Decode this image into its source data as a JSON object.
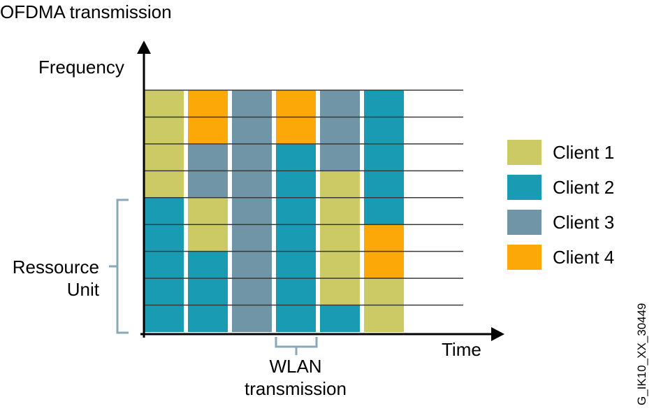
{
  "title": "OFDMA transmission",
  "axes": {
    "y_label": "Frequency",
    "x_label": "Time"
  },
  "annotations": {
    "resource_unit": [
      "Ressource",
      "Unit"
    ],
    "wlan_transmission": [
      "WLAN",
      "transmission"
    ]
  },
  "legend": [
    {
      "client": 1,
      "label": "Client 1",
      "color": "#cbca64"
    },
    {
      "client": 2,
      "label": "Client 2",
      "color": "#1a9bb4"
    },
    {
      "client": 3,
      "label": "Client 3",
      "color": "#6f95a6"
    },
    {
      "client": 4,
      "label": "Client 4",
      "color": "#fba808"
    }
  ],
  "grid": {
    "resource_units_per_slot": 9,
    "time_slots": 6,
    "slots_top_to_bottom": [
      [
        1,
        4,
        3,
        4,
        3,
        2
      ],
      [
        1,
        4,
        3,
        4,
        3,
        2
      ],
      [
        1,
        3,
        3,
        2,
        3,
        2
      ],
      [
        1,
        3,
        3,
        2,
        1,
        2
      ],
      [
        2,
        1,
        3,
        2,
        1,
        2
      ],
      [
        2,
        1,
        3,
        2,
        1,
        4
      ],
      [
        2,
        2,
        3,
        2,
        1,
        4
      ],
      [
        2,
        2,
        3,
        2,
        1,
        1
      ],
      [
        2,
        2,
        3,
        2,
        2,
        1
      ]
    ]
  },
  "figure_id": "G_IK10_XX_30449",
  "colors": {
    "axis": "#000000",
    "bracket": "#8aa9b8",
    "gridline": "#3a3a3a"
  }
}
